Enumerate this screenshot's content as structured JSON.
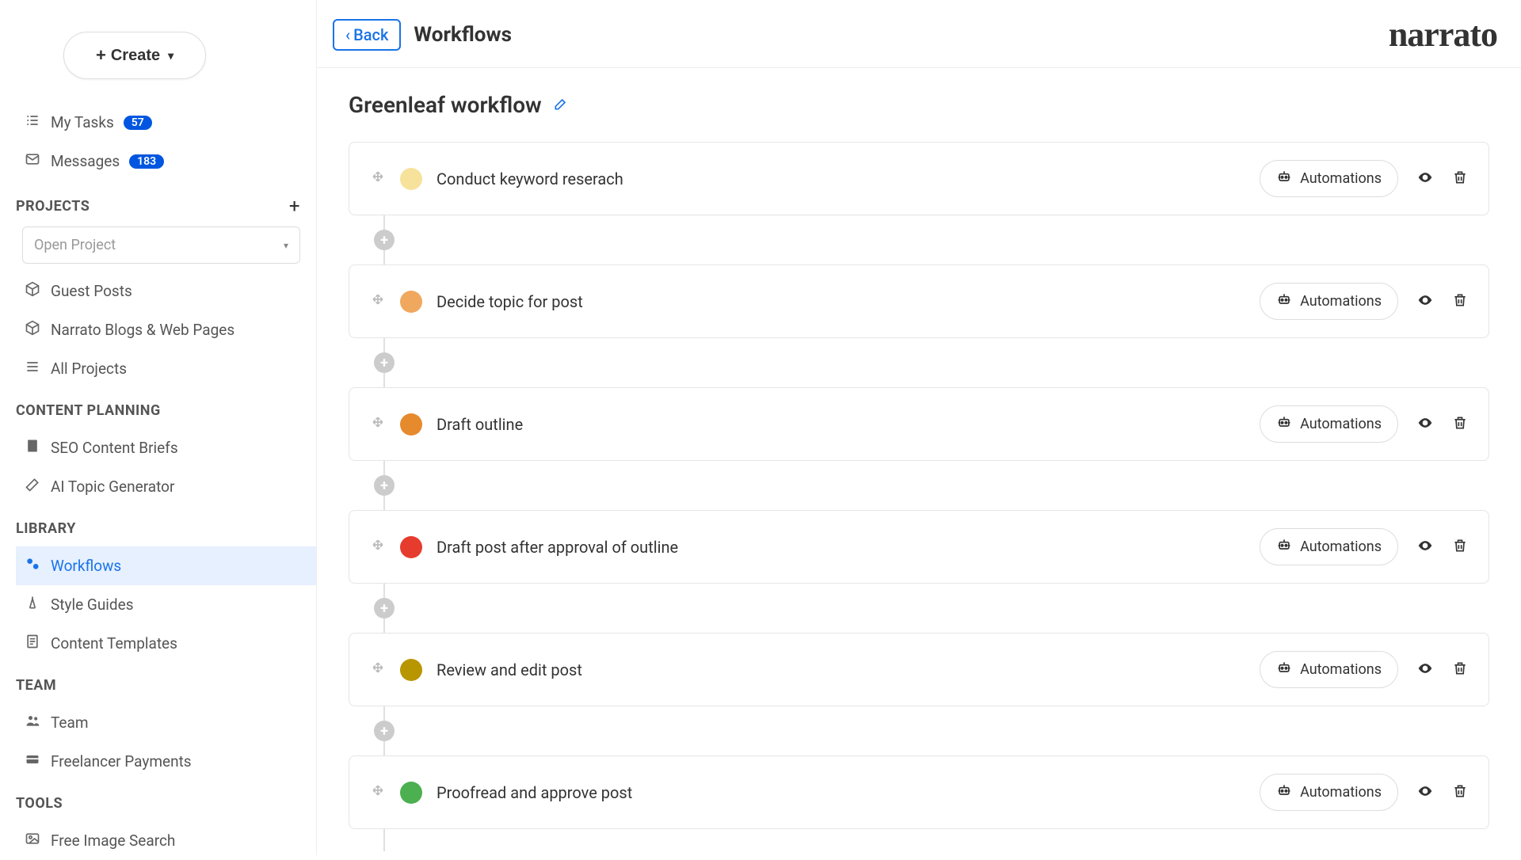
{
  "sidebar": {
    "create_label": "Create",
    "my_tasks": {
      "label": "My Tasks",
      "count": "57"
    },
    "messages": {
      "label": "Messages",
      "count": "183"
    },
    "projects_header": "PROJECTS",
    "open_project_placeholder": "Open Project",
    "projects": [
      {
        "label": "Guest Posts"
      },
      {
        "label": "Narrato Blogs & Web Pages"
      },
      {
        "label": "All Projects"
      }
    ],
    "content_planning_header": "CONTENT PLANNING",
    "content_planning": [
      {
        "label": "SEO Content Briefs"
      },
      {
        "label": "AI Topic Generator"
      }
    ],
    "library_header": "LIBRARY",
    "library": [
      {
        "label": "Workflows",
        "active": true
      },
      {
        "label": "Style Guides"
      },
      {
        "label": "Content Templates"
      }
    ],
    "team_header": "TEAM",
    "team": [
      {
        "label": "Team"
      },
      {
        "label": "Freelancer Payments"
      }
    ],
    "tools_header": "TOOLS",
    "tools": [
      {
        "label": "Free Image Search"
      }
    ]
  },
  "topbar": {
    "back_label": "Back",
    "page_title": "Workflows",
    "brand": "narrato"
  },
  "workflow": {
    "title": "Greenleaf workflow",
    "automations_label": "Automations",
    "steps": [
      {
        "label": "Conduct keyword reserach",
        "color": "#f7e29b"
      },
      {
        "label": "Decide topic for post",
        "color": "#f0a85e"
      },
      {
        "label": "Draft outline",
        "color": "#e68a2e"
      },
      {
        "label": "Draft post after approval of outline",
        "color": "#e63c2e"
      },
      {
        "label": "Review and edit post",
        "color": "#b89600"
      },
      {
        "label": "Proofread and approve post",
        "color": "#4caf50"
      }
    ]
  }
}
